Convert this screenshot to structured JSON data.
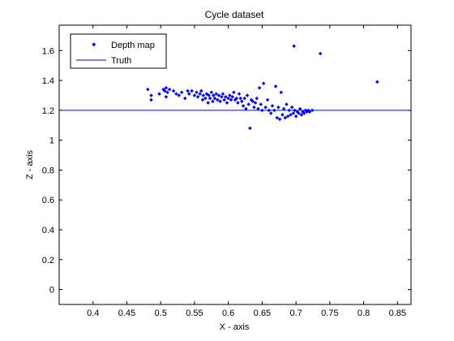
{
  "chart_data": {
    "type": "scatter",
    "title": "Cycle dataset",
    "xlabel": "X - axis",
    "ylabel": "Z - axis",
    "xlim": [
      0.35,
      0.87
    ],
    "ylim": [
      -0.1,
      1.77
    ],
    "xticks": [
      0.4,
      0.45,
      0.5,
      0.55,
      0.6,
      0.65,
      0.7,
      0.75,
      0.8,
      0.85
    ],
    "yticks": [
      0,
      0.2,
      0.4,
      0.6,
      0.8,
      1,
      1.2,
      1.4,
      1.6
    ],
    "legend_position": "top-left",
    "grid": false,
    "colors": {
      "series": "#0000ff",
      "axes": "#000000"
    },
    "series": [
      {
        "name": "Depth map",
        "style": "markers",
        "points": [
          [
            0.481,
            1.34
          ],
          [
            0.486,
            1.3
          ],
          [
            0.486,
            1.27
          ],
          [
            0.498,
            1.31
          ],
          [
            0.504,
            1.34
          ],
          [
            0.506,
            1.33
          ],
          [
            0.508,
            1.35
          ],
          [
            0.51,
            1.32
          ],
          [
            0.508,
            1.29
          ],
          [
            0.513,
            1.34
          ],
          [
            0.519,
            1.33
          ],
          [
            0.523,
            1.31
          ],
          [
            0.527,
            1.3
          ],
          [
            0.531,
            1.32
          ],
          [
            0.536,
            1.28
          ],
          [
            0.54,
            1.33
          ],
          [
            0.542,
            1.31
          ],
          [
            0.546,
            1.33
          ],
          [
            0.55,
            1.3
          ],
          [
            0.553,
            1.32
          ],
          [
            0.555,
            1.29
          ],
          [
            0.558,
            1.31
          ],
          [
            0.56,
            1.33
          ],
          [
            0.562,
            1.27
          ],
          [
            0.563,
            1.3
          ],
          [
            0.566,
            1.28
          ],
          [
            0.568,
            1.31
          ],
          [
            0.57,
            1.25
          ],
          [
            0.571,
            1.3
          ],
          [
            0.573,
            1.28
          ],
          [
            0.575,
            1.32
          ],
          [
            0.577,
            1.26
          ],
          [
            0.578,
            1.3
          ],
          [
            0.58,
            1.28
          ],
          [
            0.582,
            1.31
          ],
          [
            0.584,
            1.27
          ],
          [
            0.586,
            1.3
          ],
          [
            0.588,
            1.26
          ],
          [
            0.59,
            1.29
          ],
          [
            0.592,
            1.31
          ],
          [
            0.594,
            1.27
          ],
          [
            0.596,
            1.29
          ],
          [
            0.598,
            1.25
          ],
          [
            0.6,
            1.28
          ],
          [
            0.602,
            1.3
          ],
          [
            0.604,
            1.27
          ],
          [
            0.606,
            1.29
          ],
          [
            0.608,
            1.32
          ],
          [
            0.61,
            1.27
          ],
          [
            0.612,
            1.28
          ],
          [
            0.614,
            1.25
          ],
          [
            0.616,
            1.31
          ],
          [
            0.618,
            1.28
          ],
          [
            0.62,
            1.26
          ],
          [
            0.622,
            1.23
          ],
          [
            0.624,
            1.28
          ],
          [
            0.626,
            1.21
          ],
          [
            0.628,
            1.3
          ],
          [
            0.63,
            1.24
          ],
          [
            0.632,
            1.08
          ],
          [
            0.634,
            1.27
          ],
          [
            0.636,
            1.26
          ],
          [
            0.638,
            1.22
          ],
          [
            0.64,
            1.25
          ],
          [
            0.642,
            1.28
          ],
          [
            0.644,
            1.21
          ],
          [
            0.646,
            1.35
          ],
          [
            0.648,
            1.24
          ],
          [
            0.65,
            1.2
          ],
          [
            0.652,
            1.38
          ],
          [
            0.655,
            1.22
          ],
          [
            0.658,
            1.27
          ],
          [
            0.66,
            1.2
          ],
          [
            0.663,
            1.18
          ],
          [
            0.665,
            1.23
          ],
          [
            0.668,
            1.2
          ],
          [
            0.67,
            1.36
          ],
          [
            0.672,
            1.15
          ],
          [
            0.674,
            1.22
          ],
          [
            0.676,
            1.14
          ],
          [
            0.678,
            1.32
          ],
          [
            0.68,
            1.17
          ],
          [
            0.682,
            1.21
          ],
          [
            0.684,
            1.15
          ],
          [
            0.686,
            1.24
          ],
          [
            0.688,
            1.16
          ],
          [
            0.69,
            1.2
          ],
          [
            0.692,
            1.17
          ],
          [
            0.694,
            1.22
          ],
          [
            0.696,
            1.18
          ],
          [
            0.698,
            1.2
          ],
          [
            0.7,
            1.16
          ],
          [
            0.702,
            1.19
          ],
          [
            0.704,
            1.18
          ],
          [
            0.706,
            1.21
          ],
          [
            0.708,
            1.17
          ],
          [
            0.71,
            1.19
          ],
          [
            0.712,
            1.18
          ],
          [
            0.714,
            1.2
          ],
          [
            0.716,
            1.19
          ],
          [
            0.718,
            1.2
          ],
          [
            0.72,
            1.19
          ],
          [
            0.724,
            1.2
          ],
          [
            0.697,
            1.63
          ],
          [
            0.736,
            1.58
          ],
          [
            0.82,
            1.39
          ]
        ]
      },
      {
        "name": "Truth",
        "style": "line",
        "y": 1.2
      }
    ]
  }
}
